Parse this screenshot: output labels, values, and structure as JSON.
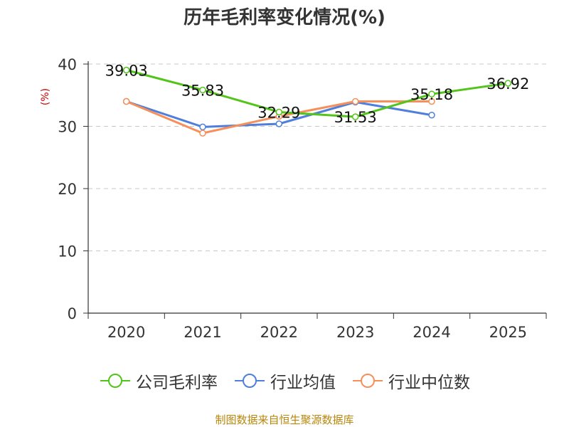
{
  "title": "历年毛利率变化情况(%)",
  "ylabel": "(%)",
  "source": "制图数据来自恒生聚源数据库",
  "colors": {
    "company": "#52c41a",
    "industry_avg": "#4f7fdb",
    "industry_median": "#f5905b",
    "ylabel": "#cc0000",
    "source": "#b8860b"
  },
  "chart_data": {
    "type": "line",
    "title": "历年毛利率变化情况(%)",
    "ylabel": "(%)",
    "categories": [
      "2020",
      "2021",
      "2022",
      "2023",
      "2024",
      "2025"
    ],
    "ylim": [
      0,
      40
    ],
    "yticks": [
      0,
      10,
      20,
      30,
      40
    ],
    "grid": true,
    "legend_position": "bottom",
    "series": [
      {
        "name": "公司毛利率",
        "values": [
          39.03,
          35.83,
          32.29,
          31.53,
          35.18,
          36.92
        ],
        "labels": [
          "39.03",
          "35.83",
          "32.29",
          "31.53",
          "35.18",
          "36.92"
        ]
      },
      {
        "name": "行业均值",
        "values": [
          34.0,
          29.9,
          30.4,
          33.9,
          31.8,
          null
        ]
      },
      {
        "name": "行业中位数",
        "values": [
          34.0,
          28.9,
          31.6,
          34.0,
          34.0,
          null
        ]
      }
    ]
  }
}
